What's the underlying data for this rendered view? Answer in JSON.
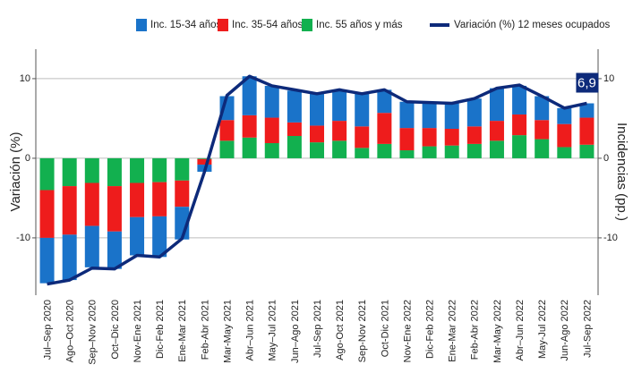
{
  "chart_data": {
    "type": "bar",
    "ylabel": "Variación (%)",
    "y2label": "Incidencias (pp.)",
    "categories": [
      "Jul–Sep 2020",
      "Ago–Oct 2020",
      "Sep–Nov 2020",
      "Oct–Dic 2020",
      "Nov-Ene 2021",
      "Dic-Feb 2021",
      "Ene-Mar 2021",
      "Feb-Abr 2021",
      "Mar-May 2021",
      "Abr–Jun 2021",
      "May–Jul 2021",
      "Jun–Ago 2021",
      "Jul-Sep 2021",
      "Ago-Oct 2021",
      "Sep-Nov 2021",
      "Oct-Dic 2021",
      "Nov-Ene 2022",
      "Dic-Feb 2022",
      "Ene-Mar 2022",
      "Feb-Abr 2022",
      "Mar-May 2022",
      "Abr–Jun 2022",
      "May-Jul 2022",
      "Jun-Ago 2022",
      "Jul-Sep 2022"
    ],
    "series": [
      {
        "name": "Inc. 15-34 años",
        "color": "#1a73c9",
        "axis": "y2",
        "values": [
          -5.7,
          -5.7,
          -5.2,
          -4.7,
          -4.8,
          -5.1,
          -4.1,
          -0.9,
          3.0,
          4.9,
          4.0,
          4.0,
          4.0,
          3.9,
          4.1,
          2.9,
          3.3,
          3.2,
          3.2,
          3.5,
          4.1,
          3.6,
          3.0,
          2.0,
          1.8
        ]
      },
      {
        "name": "Inc. 35-54 años",
        "color": "#ee1c1c",
        "axis": "y2",
        "values": [
          -6.0,
          -6.1,
          -5.4,
          -5.7,
          -4.3,
          -4.3,
          -3.3,
          -0.7,
          2.6,
          2.8,
          3.2,
          1.7,
          2.1,
          2.5,
          2.7,
          3.9,
          2.8,
          2.3,
          2.1,
          2.2,
          2.5,
          2.6,
          2.4,
          2.9,
          3.4
        ]
      },
      {
        "name": "Inc. 55 años y más",
        "color": "#12b04f",
        "axis": "y2",
        "values": [
          -4.0,
          -3.5,
          -3.1,
          -3.5,
          -3.1,
          -3.0,
          -2.8,
          -0.1,
          2.2,
          2.6,
          1.9,
          2.8,
          2.0,
          2.2,
          1.3,
          1.8,
          1.0,
          1.5,
          1.6,
          1.8,
          2.2,
          2.9,
          2.4,
          1.4,
          1.7
        ]
      },
      {
        "name": "Variación (%) 12 meses ocupados",
        "color": "#0d2a7a",
        "type": "line",
        "values": [
          -15.8,
          -15.3,
          -13.8,
          -13.9,
          -12.2,
          -12.4,
          -10.1,
          -1.7,
          7.9,
          10.3,
          9.1,
          8.6,
          8.1,
          8.6,
          8.1,
          8.6,
          7.1,
          7.0,
          6.9,
          7.5,
          8.8,
          9.2,
          7.8,
          6.3,
          6.9
        ],
        "value_labels": [
          null,
          null,
          null,
          null,
          null,
          null,
          null,
          null,
          null,
          null,
          null,
          null,
          null,
          null,
          null,
          null,
          null,
          null,
          null,
          null,
          null,
          null,
          null,
          null,
          "6,9"
        ]
      }
    ],
    "ylim": [
      -17.2,
      13.7
    ],
    "yticks": [
      -10,
      0,
      10
    ],
    "y2lim": [
      -17.2,
      13.7
    ],
    "y2ticks": [
      -10,
      0,
      10
    ],
    "grid": true,
    "legend": "top"
  }
}
